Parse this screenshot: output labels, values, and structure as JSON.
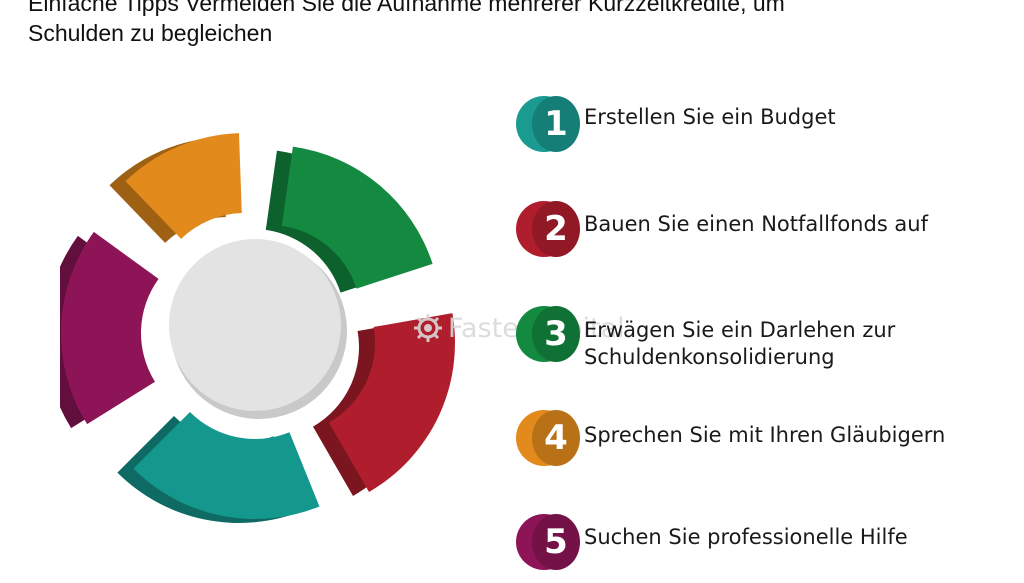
{
  "title": {
    "line1": "Einfache Tipps Vermeiden Sie die Aufnahme mehrerer Kurzzeitkredite, um",
    "line2": "Schulden zu begleichen"
  },
  "watermark": {
    "text": "FasterCapital",
    "icon": "gear-icon"
  },
  "diagram": {
    "type": "segmented-donut",
    "center_color": "#e3e3e3",
    "segments": [
      {
        "name": "green",
        "color": "#138a3f"
      },
      {
        "name": "red",
        "color": "#b01e2d"
      },
      {
        "name": "teal",
        "color": "#14988e"
      },
      {
        "name": "purple",
        "color": "#8d1557"
      },
      {
        "name": "orange",
        "color": "#e28a1c"
      }
    ]
  },
  "steps": [
    {
      "number": "1",
      "label": "Erstellen Sie ein Budget",
      "color": "#1a9a90"
    },
    {
      "number": "2",
      "label": "Bauen Sie einen Notfallfonds auf",
      "color": "#b01e2d"
    },
    {
      "number": "3",
      "label": "Erwägen Sie ein Darlehen zur Schuldenkonsolidierung",
      "color": "#138a3f"
    },
    {
      "number": "4",
      "label": "Sprechen Sie mit Ihren Gläubigern",
      "color": "#e28a1c"
    },
    {
      "number": "5",
      "label": "Suchen Sie professionelle Hilfe",
      "color": "#8d1557"
    }
  ]
}
